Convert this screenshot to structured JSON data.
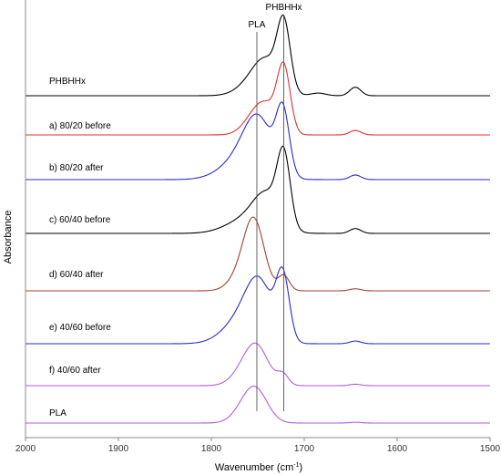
{
  "chart_data": {
    "type": "line",
    "xlabel": "Wavenumber (cm-1)",
    "xlabel_base": "Wavenumber (cm",
    "xlabel_sup": "-1",
    "xlabel_tail": ")",
    "ylabel": "Absorbance",
    "xlim": [
      2000,
      1500
    ],
    "x_reversed": true,
    "x_ticks": [
      2000,
      1900,
      1800,
      1700,
      1600,
      1500
    ],
    "grid": false,
    "reference_lines": [
      {
        "label": "PLA",
        "x": 1751
      },
      {
        "label": "PHBHHx",
        "x": 1722
      }
    ],
    "series": [
      {
        "name": "PHBHHx",
        "color": "#000000",
        "baseline": 0.0,
        "peaks": [
          {
            "x": 1722,
            "h": 1.0,
            "w": 7
          },
          {
            "x": 1740,
            "h": 0.45,
            "w": 14
          },
          {
            "x": 1755,
            "h": 0.18,
            "w": 16
          },
          {
            "x": 1685,
            "h": 0.04,
            "w": 8
          },
          {
            "x": 1645,
            "h": 0.13,
            "w": 6
          }
        ]
      },
      {
        "name": "a) 80/20 before",
        "color": "#e0302e",
        "baseline": 0.0,
        "peaks": [
          {
            "x": 1722,
            "h": 1.0,
            "w": 7
          },
          {
            "x": 1740,
            "h": 0.4,
            "w": 12
          },
          {
            "x": 1755,
            "h": 0.22,
            "w": 12
          },
          {
            "x": 1645,
            "h": 0.07,
            "w": 6
          }
        ]
      },
      {
        "name": "b) 80/20 after",
        "color": "#2a2ad0",
        "baseline": 0.0,
        "peaks": [
          {
            "x": 1723,
            "h": 0.95,
            "w": 7
          },
          {
            "x": 1749,
            "h": 0.72,
            "w": 15
          },
          {
            "x": 1765,
            "h": 0.35,
            "w": 22
          },
          {
            "x": 1645,
            "h": 0.07,
            "w": 6
          }
        ]
      },
      {
        "name": "c) 60/40 before",
        "color": "#000000",
        "baseline": 0.0,
        "peaks": [
          {
            "x": 1722,
            "h": 1.0,
            "w": 7
          },
          {
            "x": 1740,
            "h": 0.45,
            "w": 14
          },
          {
            "x": 1760,
            "h": 0.22,
            "w": 22
          },
          {
            "x": 1645,
            "h": 0.07,
            "w": 6
          }
        ]
      },
      {
        "name": "d) 60/40 after",
        "color": "#a0442c",
        "baseline": 0.0,
        "peaks": [
          {
            "x": 1754,
            "h": 1.0,
            "w": 11
          },
          {
            "x": 1770,
            "h": 0.18,
            "w": 12
          },
          {
            "x": 1722,
            "h": 0.22,
            "w": 6
          },
          {
            "x": 1645,
            "h": 0.03,
            "w": 6
          }
        ]
      },
      {
        "name": "e) 40/60 before",
        "color": "#2a2ad0",
        "baseline": 0.0,
        "peaks": [
          {
            "x": 1723,
            "h": 0.95,
            "w": 7
          },
          {
            "x": 1748,
            "h": 0.72,
            "w": 14
          },
          {
            "x": 1765,
            "h": 0.4,
            "w": 20
          },
          {
            "x": 1645,
            "h": 0.04,
            "w": 6
          }
        ]
      },
      {
        "name": "f) 40/60 after",
        "color": "#b05cd6",
        "baseline": 0.0,
        "peaks": [
          {
            "x": 1752,
            "h": 0.85,
            "w": 13
          },
          {
            "x": 1723,
            "h": 0.22,
            "w": 6
          },
          {
            "x": 1770,
            "h": 0.14,
            "w": 12
          },
          {
            "x": 1645,
            "h": 0.03,
            "w": 6
          }
        ]
      },
      {
        "name": "PLA",
        "color": "#b05cd6",
        "baseline": 0.0,
        "peaks": [
          {
            "x": 1753,
            "h": 0.85,
            "w": 13
          },
          {
            "x": 1768,
            "h": 0.14,
            "w": 12
          },
          {
            "x": 1645,
            "h": 0.02,
            "w": 6
          }
        ]
      }
    ]
  }
}
